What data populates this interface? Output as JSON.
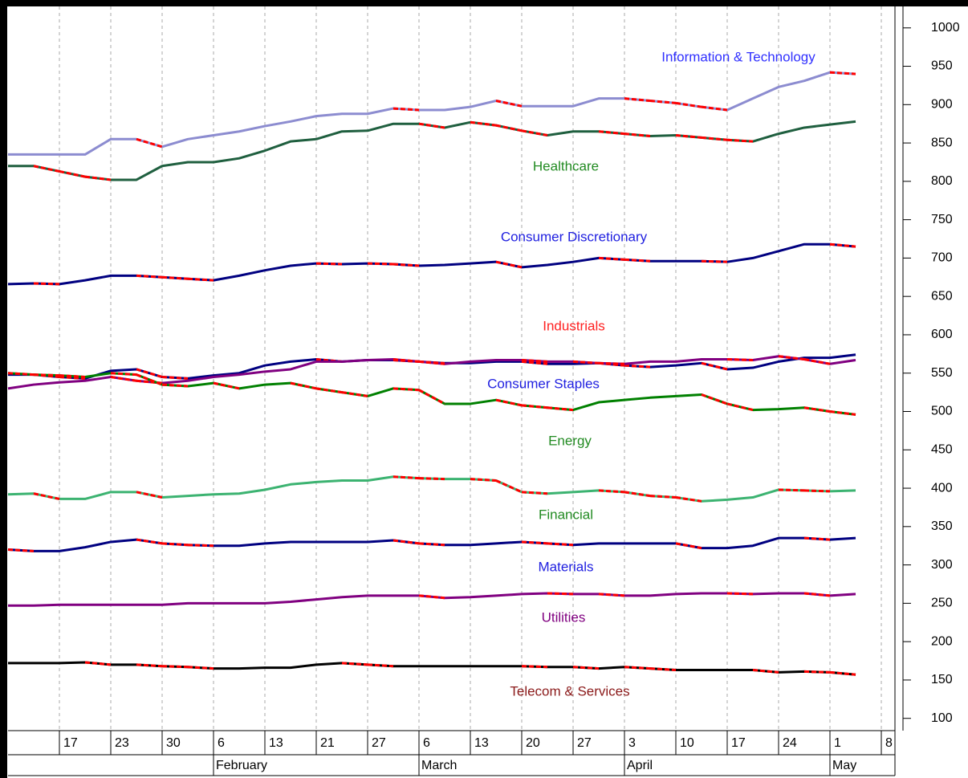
{
  "chart_data": {
    "type": "line",
    "categories": [
      null,
      null,
      "17",
      null,
      "23",
      null,
      "30",
      null,
      "6",
      null,
      "13",
      null,
      "21",
      null,
      "27",
      null,
      "6",
      null,
      "13",
      null,
      "20",
      null,
      "27",
      null,
      "3",
      null,
      "10",
      null,
      "17",
      null,
      "24",
      null,
      "1",
      null,
      "8"
    ],
    "months": [
      null,
      null,
      null,
      null,
      null,
      null,
      null,
      null,
      "February",
      null,
      null,
      null,
      null,
      null,
      null,
      null,
      "March",
      null,
      null,
      null,
      null,
      null,
      null,
      null,
      "April",
      null,
      null,
      null,
      null,
      null,
      null,
      null,
      "May",
      null,
      null
    ],
    "ylim": [
      84,
      1028
    ],
    "yticks": [
      100,
      150,
      200,
      250,
      300,
      350,
      400,
      450,
      500,
      550,
      600,
      650,
      700,
      750,
      800,
      850,
      900,
      950,
      1000
    ],
    "grid": true,
    "down_color": "#ff0000",
    "series": [
      {
        "name": "Information & Technology",
        "color": "#8c8cd0",
        "label_color": "#3030ff",
        "values": [
          835,
          835,
          835,
          835,
          855,
          855,
          845,
          855,
          860,
          865,
          872,
          878,
          885,
          888,
          888,
          895,
          893,
          893,
          897,
          905,
          898,
          898,
          898,
          908,
          908,
          905,
          902,
          897,
          893,
          908,
          923,
          931,
          942,
          940,
          null
        ]
      },
      {
        "name": "Healthcare",
        "color": "#1f5f3f",
        "label_color": "#228b22",
        "values": [
          820,
          820,
          813,
          806,
          802,
          802,
          820,
          825,
          825,
          830,
          840,
          852,
          855,
          865,
          866,
          875,
          875,
          870,
          877,
          873,
          866,
          860,
          865,
          865,
          862,
          859,
          860,
          857,
          854,
          852,
          862,
          870,
          874,
          878,
          null
        ]
      },
      {
        "name": "Consumer Discretionary",
        "color": "#000080",
        "label_color": "#2020e0",
        "values": [
          666,
          667,
          666,
          671,
          677,
          677,
          675,
          673,
          671,
          677,
          684,
          690,
          693,
          692,
          693,
          692,
          690,
          691,
          693,
          695,
          688,
          691,
          695,
          700,
          698,
          696,
          696,
          696,
          695,
          700,
          709,
          718,
          718,
          715,
          null
        ]
      },
      {
        "name": "Industrials",
        "color": "#000080",
        "label_color": "#ff2020",
        "values": [
          548,
          548,
          545,
          543,
          553,
          555,
          545,
          543,
          547,
          550,
          560,
          565,
          568,
          565,
          567,
          567,
          565,
          563,
          563,
          565,
          565,
          562,
          562,
          563,
          560,
          558,
          560,
          563,
          555,
          557,
          565,
          570,
          570,
          574,
          null
        ]
      },
      {
        "name": "Consumer Staples",
        "color": "#800080",
        "label_color": "#2020e0",
        "values": [
          530,
          535,
          538,
          540,
          545,
          540,
          537,
          540,
          545,
          548,
          552,
          555,
          565,
          565,
          567,
          568,
          565,
          562,
          565,
          567,
          567,
          565,
          565,
          563,
          562,
          565,
          565,
          568,
          568,
          567,
          572,
          568,
          562,
          567,
          null
        ]
      },
      {
        "name": "Energy",
        "color": "#008000",
        "label_color": "#228b22",
        "values": [
          550,
          548,
          547,
          545,
          550,
          548,
          535,
          533,
          537,
          530,
          535,
          537,
          530,
          525,
          520,
          530,
          528,
          510,
          510,
          515,
          508,
          505,
          502,
          512,
          515,
          518,
          520,
          522,
          510,
          502,
          503,
          505,
          500,
          496,
          null
        ]
      },
      {
        "name": "Financial",
        "color": "#3cb371",
        "label_color": "#228b22",
        "values": [
          392,
          393,
          386,
          386,
          395,
          395,
          388,
          390,
          392,
          393,
          398,
          405,
          408,
          410,
          410,
          415,
          413,
          412,
          412,
          410,
          395,
          393,
          395,
          397,
          395,
          390,
          388,
          383,
          385,
          388,
          398,
          397,
          396,
          397,
          null
        ]
      },
      {
        "name": "Materials",
        "color": "#000080",
        "label_color": "#2020e0",
        "values": [
          320,
          318,
          318,
          323,
          330,
          333,
          328,
          326,
          325,
          325,
          328,
          330,
          330,
          330,
          330,
          332,
          328,
          326,
          326,
          328,
          330,
          328,
          326,
          328,
          328,
          328,
          328,
          322,
          322,
          325,
          335,
          335,
          333,
          335,
          null
        ]
      },
      {
        "name": "Utilities",
        "color": "#800080",
        "label_color": "#800080",
        "values": [
          247,
          247,
          248,
          248,
          248,
          248,
          248,
          250,
          250,
          250,
          250,
          252,
          255,
          258,
          260,
          260,
          260,
          257,
          258,
          260,
          262,
          263,
          262,
          262,
          260,
          260,
          262,
          263,
          263,
          262,
          263,
          263,
          260,
          262,
          null
        ]
      },
      {
        "name": "Telecom & Services",
        "color": "#000000",
        "label_color": "#8b1a1a",
        "values": [
          172,
          172,
          172,
          173,
          170,
          170,
          168,
          167,
          165,
          165,
          166,
          166,
          170,
          172,
          170,
          168,
          168,
          168,
          168,
          168,
          168,
          167,
          167,
          165,
          167,
          165,
          163,
          163,
          163,
          163,
          160,
          161,
          160,
          157,
          null
        ]
      }
    ]
  }
}
